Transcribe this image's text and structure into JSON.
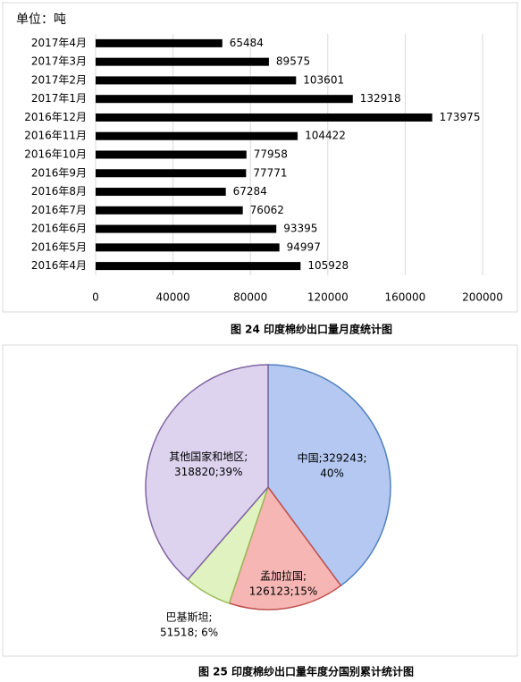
{
  "captions": [
    "图 24 印度棉纱出口量月度统计图",
    "图 25 印度棉纱出口量年度分国别累计统计图"
  ],
  "chart_data": [
    {
      "type": "barh",
      "unit_label": "单位：吨",
      "categories": [
        "2017年4月",
        "2017年3月",
        "2017年2月",
        "2017年1月",
        "2016年12月",
        "2016年11月",
        "2016年10月",
        "2016年9月",
        "2016年8月",
        "2016年7月",
        "2016年6月",
        "2016年5月",
        "2016年4月"
      ],
      "values": [
        65484,
        89575,
        103601,
        132918,
        173975,
        104422,
        77958,
        77771,
        67284,
        76062,
        93395,
        94997,
        105928
      ],
      "color": "#000000",
      "xlim": [
        0,
        200000
      ],
      "xticks": [
        0,
        40000,
        80000,
        120000,
        160000,
        200000
      ],
      "grid": true
    },
    {
      "type": "pie",
      "values": [
        329243,
        126123,
        51518,
        318820
      ],
      "value_labels": [
        [
          "中国;329243;",
          "40%"
        ],
        [
          "孟加拉国;",
          "126123;15%"
        ],
        [
          "巴基斯坦;",
          "51518; 6%"
        ],
        [
          "其他国家和地区;",
          "318820;39%"
        ]
      ],
      "colors": [
        "#b4c8f2",
        "#f6b6b4",
        "#e0f2c0",
        "#ddd3ef"
      ],
      "edge_colors": [
        "#4f81bd",
        "#c0504d",
        "#9bbb59",
        "#8064a2"
      ]
    }
  ]
}
